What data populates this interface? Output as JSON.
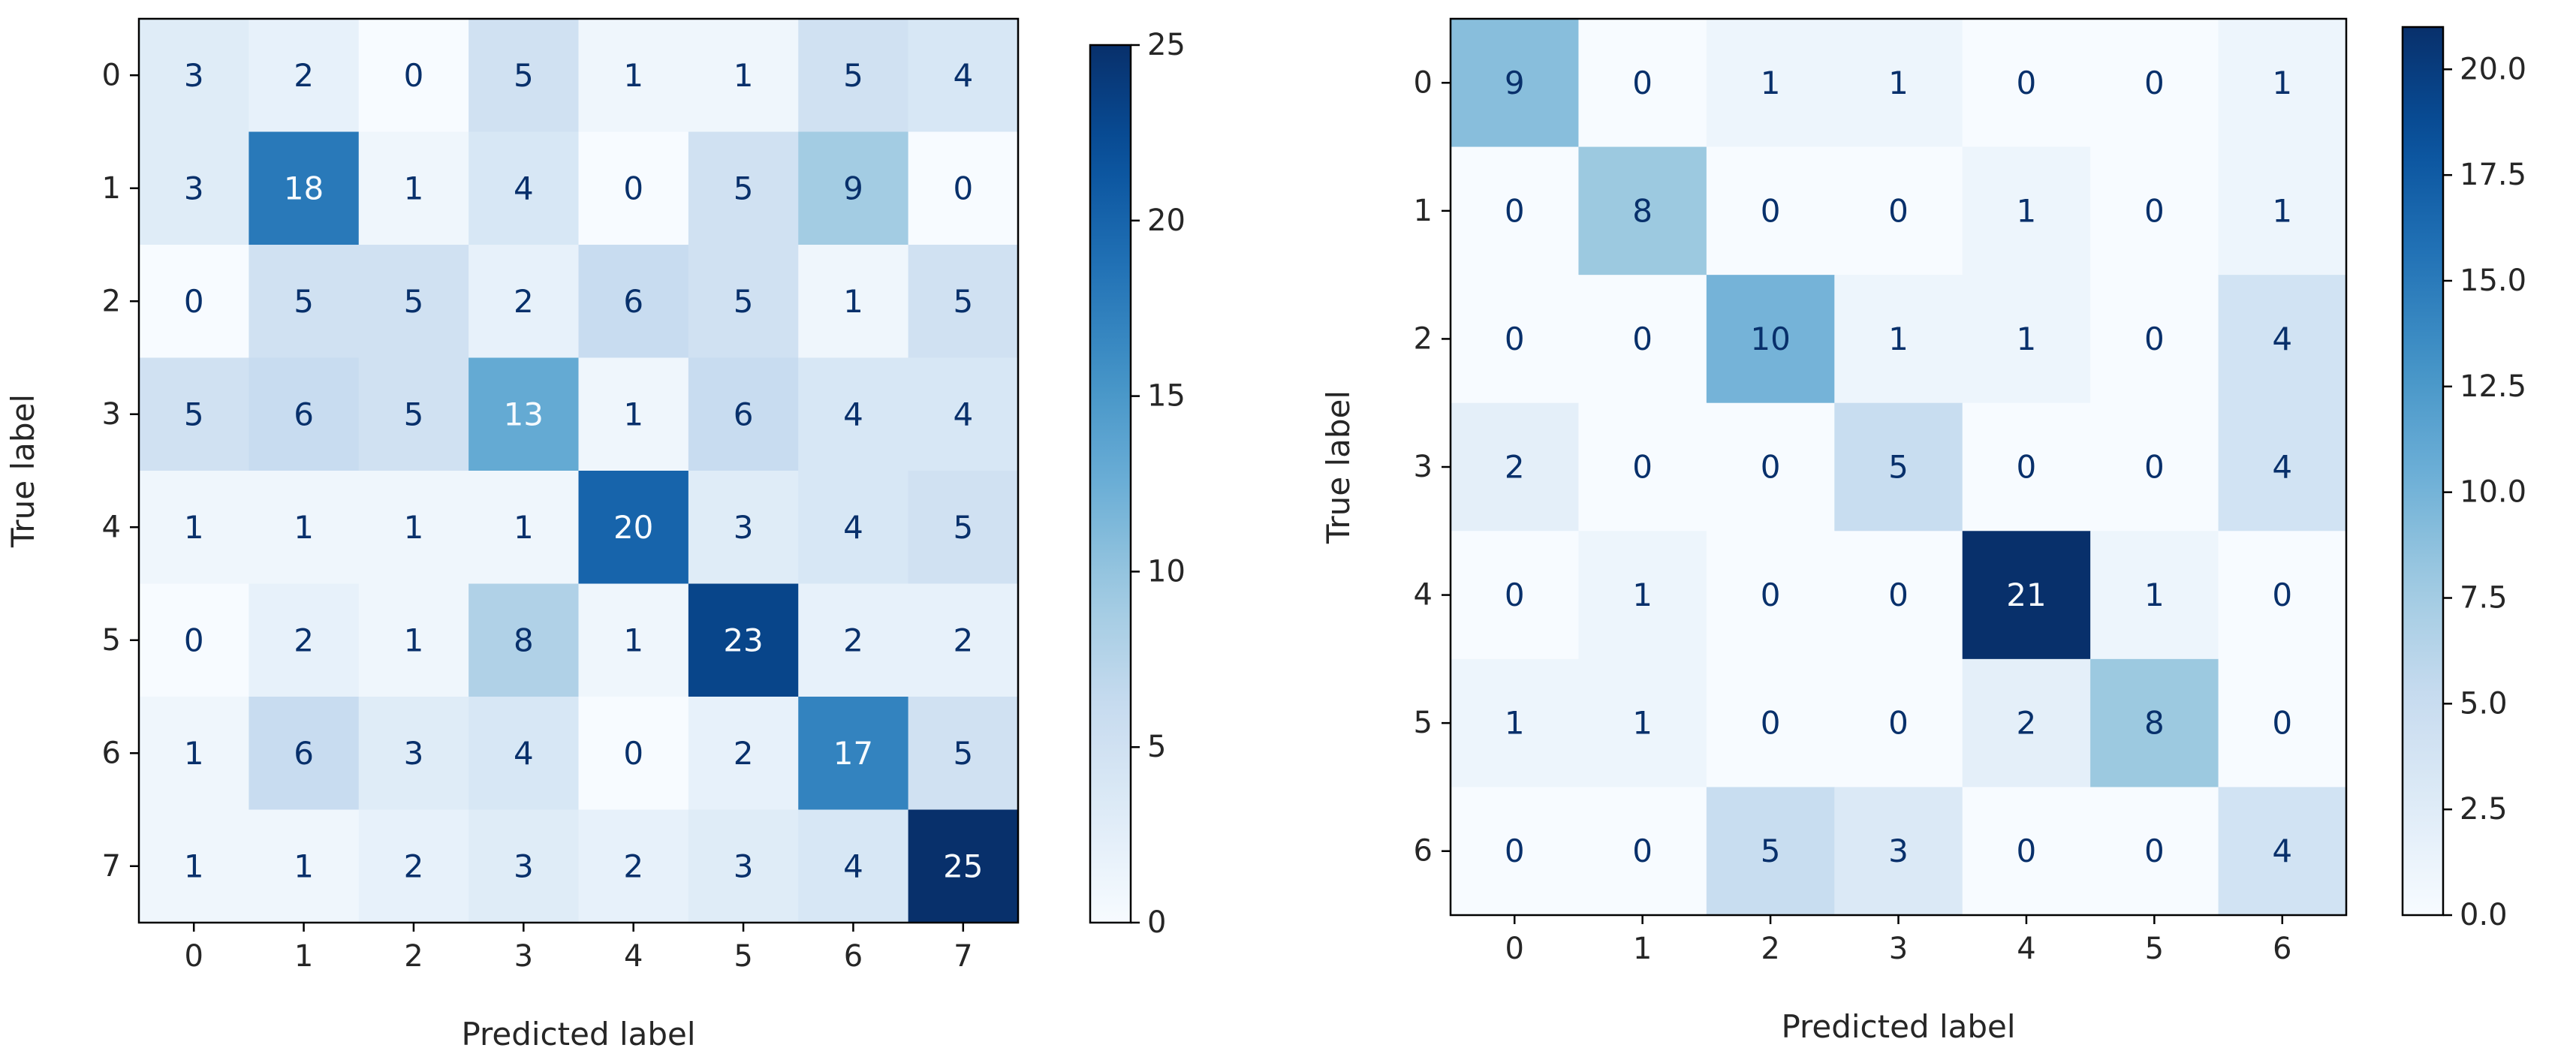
{
  "chart_data": [
    {
      "type": "heatmap",
      "title": "",
      "xlabel": "Predicted label",
      "ylabel": "True label",
      "x_ticks": [
        "0",
        "1",
        "2",
        "3",
        "4",
        "5",
        "6",
        "7"
      ],
      "y_ticks": [
        "0",
        "1",
        "2",
        "3",
        "4",
        "5",
        "6",
        "7"
      ],
      "values": [
        [
          3,
          2,
          0,
          5,
          1,
          1,
          5,
          4
        ],
        [
          3,
          18,
          1,
          4,
          0,
          5,
          9,
          0
        ],
        [
          0,
          5,
          5,
          2,
          6,
          5,
          1,
          5
        ],
        [
          5,
          6,
          5,
          13,
          1,
          6,
          4,
          4
        ],
        [
          1,
          1,
          1,
          1,
          20,
          3,
          4,
          5
        ],
        [
          0,
          2,
          1,
          8,
          1,
          23,
          2,
          2
        ],
        [
          1,
          6,
          3,
          4,
          0,
          2,
          17,
          5
        ],
        [
          1,
          1,
          2,
          3,
          2,
          3,
          4,
          25
        ]
      ],
      "colormap": "Blues",
      "colorbar": {
        "min": 0,
        "max": 25,
        "ticks": [
          0,
          5,
          10,
          15,
          20,
          25
        ],
        "tick_labels": [
          "0",
          "5",
          "10",
          "15",
          "20",
          "25"
        ]
      }
    },
    {
      "type": "heatmap",
      "title": "",
      "xlabel": "Predicted label",
      "ylabel": "True label",
      "x_ticks": [
        "0",
        "1",
        "2",
        "3",
        "4",
        "5",
        "6"
      ],
      "y_ticks": [
        "0",
        "1",
        "2",
        "3",
        "4",
        "5",
        "6"
      ],
      "values": [
        [
          9,
          0,
          1,
          1,
          0,
          0,
          1
        ],
        [
          0,
          8,
          0,
          0,
          1,
          0,
          1
        ],
        [
          0,
          0,
          10,
          1,
          1,
          0,
          4
        ],
        [
          2,
          0,
          0,
          5,
          0,
          0,
          4
        ],
        [
          0,
          1,
          0,
          0,
          21,
          1,
          0
        ],
        [
          1,
          1,
          0,
          0,
          2,
          8,
          0
        ],
        [
          0,
          0,
          5,
          3,
          0,
          0,
          4
        ]
      ],
      "colormap": "Blues",
      "colorbar": {
        "min": 0,
        "max": 21,
        "ticks": [
          0,
          2.5,
          5,
          7.5,
          10,
          12.5,
          15,
          17.5,
          20
        ],
        "tick_labels": [
          "0.0",
          "2.5",
          "5.0",
          "7.5",
          "10.0",
          "12.5",
          "15.0",
          "17.5",
          "20.0"
        ]
      }
    }
  ]
}
